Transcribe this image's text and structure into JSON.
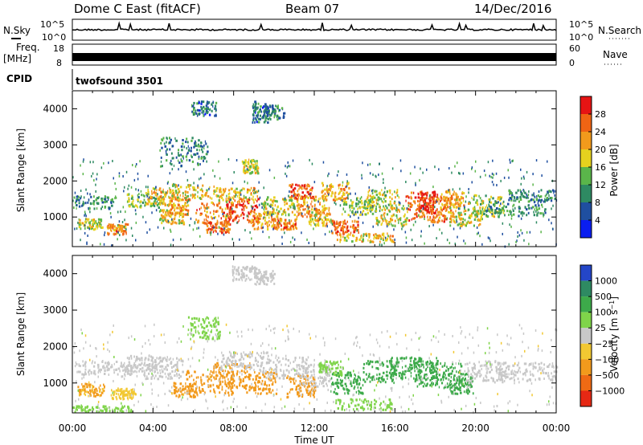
{
  "header": {
    "title": "Dome C East (fitACF)",
    "beam": "Beam 07",
    "date": "14/Dec/2016"
  },
  "noise_panel": {
    "left_label": "N.Sky",
    "right_label": "N.Search",
    "left_ticks": [
      "10^5",
      "10^0"
    ],
    "right_ticks": [
      "10^5",
      "10^0"
    ]
  },
  "freq_panel": {
    "left_label_1": "Freq.",
    "left_label_2": "[MHz]",
    "right_label": "Nave",
    "left_ticks": [
      "18",
      "8"
    ],
    "right_ticks": [
      "60",
      "0"
    ]
  },
  "cpid_panel": {
    "label": "CPID",
    "value": "twofsound 3501"
  },
  "x_axis": {
    "label": "Time UT",
    "tick_labels": [
      "00:00",
      "04:00",
      "08:00",
      "12:00",
      "16:00",
      "20:00",
      "00:00"
    ]
  },
  "chart_data": [
    {
      "type": "heatmap",
      "name": "power",
      "ylabel": "Slant Range [km]",
      "ylim": [
        180,
        4500
      ],
      "y_ticks": [
        1000,
        2000,
        3000,
        4000
      ],
      "xlim": [
        0,
        24
      ],
      "colorbar": {
        "label": "Power [dB]",
        "tick_labels": [
          "4",
          "8",
          "12",
          "16",
          "20",
          "24",
          "28"
        ],
        "colors": [
          "#0a1ef0",
          "#1f4fa0",
          "#2e8a62",
          "#5ab54a",
          "#e6d21e",
          "#f29a1c",
          "#f06414",
          "#e61414"
        ]
      },
      "blobs": [
        {
          "t": 0.8,
          "r": 1400,
          "dt": 1.4,
          "dr": 180,
          "v": 11
        },
        {
          "t": 0.9,
          "r": 800,
          "dt": 0.6,
          "dr": 150,
          "v": 17
        },
        {
          "t": 2.2,
          "r": 650,
          "dt": 0.5,
          "dr": 150,
          "v": 24
        },
        {
          "t": 3.6,
          "r": 1450,
          "dt": 0.9,
          "dr": 200,
          "v": 14
        },
        {
          "t": 4.3,
          "r": 1550,
          "dt": 0.7,
          "dr": 250,
          "v": 20
        },
        {
          "t": 4.9,
          "r": 1000,
          "dt": 0.6,
          "dr": 200,
          "v": 18
        },
        {
          "t": 5.3,
          "r": 1300,
          "dt": 0.5,
          "dr": 250,
          "v": 22
        },
        {
          "t": 6.0,
          "r": 1700,
          "dt": 1.2,
          "dr": 200,
          "v": 18
        },
        {
          "t": 7.0,
          "r": 1100,
          "dt": 0.9,
          "dr": 300,
          "v": 24
        },
        {
          "t": 7.2,
          "r": 700,
          "dt": 0.6,
          "dr": 150,
          "v": 26
        },
        {
          "t": 8.4,
          "r": 1200,
          "dt": 0.8,
          "dr": 350,
          "v": 28
        },
        {
          "t": 8.2,
          "r": 1600,
          "dt": 1.0,
          "dr": 200,
          "v": 20
        },
        {
          "t": 8.8,
          "r": 2400,
          "dt": 0.4,
          "dr": 200,
          "v": 17
        },
        {
          "t": 9.5,
          "r": 900,
          "dt": 0.7,
          "dr": 250,
          "v": 22
        },
        {
          "t": 10.2,
          "r": 1300,
          "dt": 0.8,
          "dr": 250,
          "v": 18
        },
        {
          "t": 10.5,
          "r": 800,
          "dt": 0.6,
          "dr": 150,
          "v": 24
        },
        {
          "t": 11.3,
          "r": 1700,
          "dt": 0.6,
          "dr": 200,
          "v": 26
        },
        {
          "t": 11.8,
          "r": 1300,
          "dt": 0.7,
          "dr": 300,
          "v": 22
        },
        {
          "t": 12.3,
          "r": 1000,
          "dt": 0.6,
          "dr": 250,
          "v": 20
        },
        {
          "t": 13.0,
          "r": 1700,
          "dt": 0.7,
          "dr": 250,
          "v": 22
        },
        {
          "t": 13.5,
          "r": 700,
          "dt": 0.7,
          "dr": 200,
          "v": 26
        },
        {
          "t": 14.2,
          "r": 1300,
          "dt": 0.9,
          "dr": 250,
          "v": 14
        },
        {
          "t": 14.5,
          "r": 420,
          "dt": 1.4,
          "dr": 120,
          "v": 20
        },
        {
          "t": 15.4,
          "r": 1500,
          "dt": 0.8,
          "dr": 250,
          "v": 16
        },
        {
          "t": 15.8,
          "r": 1000,
          "dt": 0.8,
          "dr": 250,
          "v": 18
        },
        {
          "t": 17.2,
          "r": 1300,
          "dt": 0.7,
          "dr": 400,
          "v": 26
        },
        {
          "t": 17.6,
          "r": 1400,
          "dt": 0.5,
          "dr": 300,
          "v": 30
        },
        {
          "t": 18.3,
          "r": 1200,
          "dt": 0.6,
          "dr": 350,
          "v": 24
        },
        {
          "t": 18.8,
          "r": 1500,
          "dt": 0.6,
          "dr": 250,
          "v": 22
        },
        {
          "t": 19.5,
          "r": 1000,
          "dt": 0.8,
          "dr": 250,
          "v": 18
        },
        {
          "t": 20.5,
          "r": 1300,
          "dt": 0.9,
          "dr": 300,
          "v": 16
        },
        {
          "t": 22.0,
          "r": 1250,
          "dt": 1.5,
          "dr": 250,
          "v": 11
        },
        {
          "t": 22.8,
          "r": 1600,
          "dt": 1.2,
          "dr": 150,
          "v": 9
        },
        {
          "t": 9.3,
          "r": 3900,
          "dt": 0.4,
          "dr": 300,
          "v": 8
        },
        {
          "t": 10.0,
          "r": 3900,
          "dt": 0.5,
          "dr": 200,
          "v": 9
        },
        {
          "t": 6.5,
          "r": 4000,
          "dt": 0.6,
          "dr": 200,
          "v": 8
        },
        {
          "t": 5.5,
          "r": 2800,
          "dt": 1.2,
          "dr": 400,
          "v": 10
        }
      ]
    },
    {
      "type": "heatmap",
      "name": "velocity",
      "ylabel": "Slant Range [km]",
      "ylim": [
        180,
        4500
      ],
      "y_ticks": [
        1000,
        2000,
        3000,
        4000
      ],
      "xlim": [
        0,
        24
      ],
      "colorbar": {
        "label": "Velocity [m s^-1]",
        "tick_labels": [
          "1000",
          "500",
          "100",
          "25",
          "−25",
          "−100",
          "−500",
          "−1000"
        ],
        "colors": [
          "#2446c8",
          "#2e8a62",
          "#3daa4a",
          "#7fd44a",
          "#c8c8c8",
          "#f2c832",
          "#f29a1c",
          "#ef6a14",
          "#e62814"
        ]
      },
      "blobs": [
        {
          "t": 0.9,
          "r": 800,
          "dt": 0.7,
          "dr": 180,
          "v": -110
        },
        {
          "t": 1.5,
          "r": 1400,
          "dt": 1.4,
          "dr": 180,
          "v": 0
        },
        {
          "t": 2.5,
          "r": 700,
          "dt": 0.6,
          "dr": 150,
          "v": -60
        },
        {
          "t": 3.5,
          "r": 1500,
          "dt": 1.0,
          "dr": 250,
          "v": 0
        },
        {
          "t": 4.5,
          "r": 1400,
          "dt": 1.0,
          "dr": 300,
          "v": 0
        },
        {
          "t": 5.5,
          "r": 800,
          "dt": 0.6,
          "dr": 200,
          "v": -150
        },
        {
          "t": 6.8,
          "r": 1000,
          "dt": 1.2,
          "dr": 350,
          "v": -300
        },
        {
          "t": 7.8,
          "r": 1200,
          "dt": 1.0,
          "dr": 350,
          "v": -250
        },
        {
          "t": 8.5,
          "r": 1600,
          "dt": 1.2,
          "dr": 250,
          "v": 0
        },
        {
          "t": 9.3,
          "r": 1000,
          "dt": 0.8,
          "dr": 300,
          "v": -300
        },
        {
          "t": 10.5,
          "r": 1400,
          "dt": 1.2,
          "dr": 300,
          "v": 0
        },
        {
          "t": 11.3,
          "r": 900,
          "dt": 0.7,
          "dr": 300,
          "v": -300
        },
        {
          "t": 12.0,
          "r": 1200,
          "dt": 0.8,
          "dr": 300,
          "v": 0
        },
        {
          "t": 12.8,
          "r": 1400,
          "dt": 0.6,
          "dr": 200,
          "v": 60
        },
        {
          "t": 13.6,
          "r": 1000,
          "dt": 0.8,
          "dr": 300,
          "v": 150
        },
        {
          "t": 14.5,
          "r": 400,
          "dt": 1.5,
          "dr": 150,
          "v": 60
        },
        {
          "t": 15.4,
          "r": 1300,
          "dt": 1.0,
          "dr": 300,
          "v": 150
        },
        {
          "t": 16.5,
          "r": 1400,
          "dt": 0.8,
          "dr": 300,
          "v": 200
        },
        {
          "t": 17.5,
          "r": 1300,
          "dt": 0.6,
          "dr": 400,
          "v": 300
        },
        {
          "t": 18.5,
          "r": 1200,
          "dt": 0.8,
          "dr": 350,
          "v": 200
        },
        {
          "t": 19.3,
          "r": 1000,
          "dt": 0.6,
          "dr": 300,
          "v": 150
        },
        {
          "t": 20.5,
          "r": 1300,
          "dt": 1.0,
          "dr": 300,
          "v": 0
        },
        {
          "t": 22.5,
          "r": 1300,
          "dt": 1.5,
          "dr": 250,
          "v": 0
        },
        {
          "t": 1.5,
          "r": 280,
          "dt": 1.5,
          "dr": 80,
          "v": 60
        },
        {
          "t": 9.5,
          "r": 3900,
          "dt": 0.5,
          "dr": 200,
          "v": 0
        },
        {
          "t": 8.5,
          "r": 4000,
          "dt": 0.6,
          "dr": 200,
          "v": 0
        },
        {
          "t": 6.5,
          "r": 2500,
          "dt": 0.8,
          "dr": 300,
          "v": 60
        }
      ]
    }
  ]
}
